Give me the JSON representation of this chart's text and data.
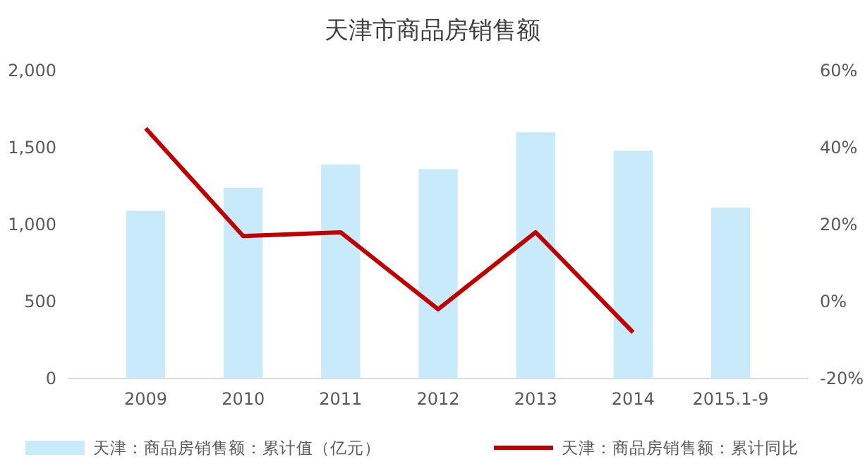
{
  "chart_data": {
    "type": "bar",
    "title": "天津市商品房销售额",
    "categories": [
      "2009",
      "2010",
      "2011",
      "2012",
      "2013",
      "2014",
      "2015.1-9"
    ],
    "series": [
      {
        "name": "天津：商品房销售额：累计值（亿元）",
        "color": "#c9eafb",
        "values": [
          1090,
          1240,
          1390,
          1360,
          1600,
          1480,
          1110
        ]
      },
      {
        "name": "天津：商品房销售额：累计同比",
        "type": "line",
        "axis": "y2",
        "color": "#c00000",
        "values": [
          45,
          17,
          18,
          -2,
          18,
          -8,
          null
        ]
      }
    ],
    "ylim": [
      0,
      2000
    ],
    "yticks": [
      0,
      {
        "value": 500,
        "label": "500"
      },
      {
        "value": 1000,
        "label": "1,000"
      },
      {
        "value": 1500,
        "label": "1,500"
      },
      {
        "value": 2000,
        "label": "2,000"
      }
    ],
    "y2lim": [
      -20,
      60
    ],
    "y2ticks": [
      {
        "value": -20,
        "label": "-20%"
      },
      {
        "value": 0,
        "label": "0%"
      },
      {
        "value": 20,
        "label": "20%"
      },
      {
        "value": 40,
        "label": "40%"
      },
      {
        "value": 60,
        "label": "60%"
      }
    ],
    "legend": "bottom",
    "marker": "none"
  }
}
